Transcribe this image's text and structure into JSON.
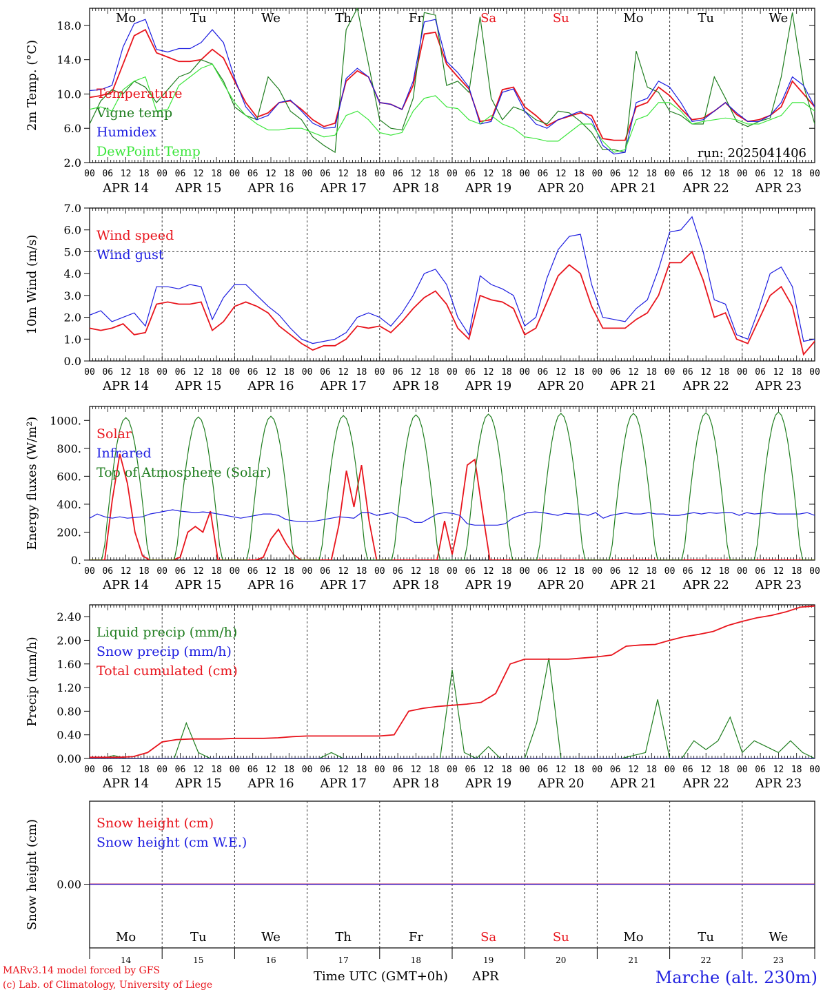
{
  "colors": {
    "red": "#e8141c",
    "green": "#1e7d1e",
    "blue": "#1c1ce0",
    "lime": "#3ce63c",
    "grid": "#333333"
  },
  "day_labels": {
    "top": [
      {
        "t": "Mo",
        "c": "black"
      },
      {
        "t": "Tu",
        "c": "black"
      },
      {
        "t": "We",
        "c": "black"
      },
      {
        "t": "Th",
        "c": "black"
      },
      {
        "t": "Fr",
        "c": "black"
      },
      {
        "t": "Sa",
        "c": "red"
      },
      {
        "t": "Su",
        "c": "red"
      },
      {
        "t": "Mo",
        "c": "black"
      },
      {
        "t": "Tu",
        "c": "black"
      },
      {
        "t": "We",
        "c": "black"
      }
    ],
    "date_rows": [
      "APR 14",
      "APR 15",
      "APR 16",
      "APR 17",
      "APR 18",
      "APR 19",
      "APR 20",
      "APR 21",
      "APR 22",
      "APR 23"
    ],
    "hour_ticks": [
      "00",
      "06",
      "12",
      "18"
    ],
    "hour_end": "00",
    "day_numbers": [
      "14",
      "15",
      "16",
      "17",
      "18",
      "19",
      "20",
      "21",
      "22",
      "23"
    ]
  },
  "footer": {
    "model": "MARv3.14 model forced by GFS",
    "credit": "(c) Lab. of Climatology, University of Liege",
    "xlabel": "Time UTC (GMT+0h)",
    "month": "APR",
    "station": "Marche (alt. 230m)"
  },
  "chart_data": [
    {
      "id": "temp",
      "type": "line",
      "ylabel": "2m Temp. (°C)",
      "ylim": [
        2,
        20
      ],
      "yticks": [
        "2.0",
        "6.0",
        "10.0",
        "14.0",
        "18.0"
      ],
      "ytick_values": [
        2,
        6,
        10,
        14,
        18
      ],
      "run": "run: 2025041406",
      "x_hours_step": 6,
      "series": [
        {
          "name": "Temperature",
          "color": "red",
          "values": [
            9.6,
            9.8,
            10.2,
            13.5,
            16.8,
            17.5,
            14.8,
            14.3,
            13.8,
            13.8,
            14.0,
            15.2,
            14.2,
            11.5,
            9.0,
            7.3,
            7.8,
            9.0,
            9.2,
            8.2,
            7.0,
            6.2,
            6.6,
            11.5,
            12.7,
            12.0,
            9.0,
            8.8,
            8.2,
            11.0,
            17.0,
            17.2,
            13.5,
            12.0,
            10.6,
            6.8,
            7.0,
            10.5,
            10.8,
            8.5,
            7.5,
            6.3,
            7.0,
            7.4,
            7.8,
            7.5,
            4.8,
            4.6,
            4.6,
            8.5,
            9.0,
            10.8,
            9.8,
            8.3,
            7.0,
            7.2,
            8.0,
            9.0,
            7.6,
            6.8,
            7.0,
            7.5,
            8.5,
            11.5,
            10.0,
            8.5
          ]
        },
        {
          "name": "Vigne temp",
          "color": "green",
          "values": [
            6.5,
            9.2,
            10.5,
            10.0,
            11.5,
            10.8,
            9.0,
            10.5,
            12.0,
            12.5,
            14.0,
            13.5,
            11.5,
            8.5,
            7.5,
            7.0,
            12.0,
            10.5,
            8.0,
            7.0,
            5.0,
            4.0,
            3.2,
            17.5,
            20.0,
            13.5,
            7.0,
            6.0,
            5.8,
            9.5,
            19.5,
            19.2,
            11.0,
            11.5,
            10.2,
            19.0,
            9.5,
            7.0,
            8.5,
            8.0,
            7.0,
            6.5,
            8.0,
            7.8,
            6.8,
            5.5,
            3.5,
            3.5,
            3.2,
            15.0,
            10.8,
            10.2,
            8.0,
            7.5,
            6.5,
            6.5,
            12.0,
            9.5,
            6.8,
            6.2,
            6.8,
            7.2,
            12.0,
            19.5,
            11.0,
            6.5
          ]
        },
        {
          "name": "Humidex",
          "color": "blue",
          "values": [
            10.4,
            10.5,
            11.0,
            15.5,
            18.2,
            18.7,
            15.2,
            14.9,
            15.3,
            15.3,
            16.0,
            17.5,
            16.0,
            11.8,
            8.5,
            7.0,
            7.5,
            9.0,
            9.3,
            8.0,
            6.6,
            6.0,
            6.1,
            11.8,
            13.0,
            12.0,
            9.0,
            8.8,
            8.2,
            11.5,
            18.4,
            18.7,
            13.8,
            12.5,
            10.8,
            6.5,
            6.8,
            10.2,
            10.6,
            8.0,
            6.5,
            6.0,
            7.0,
            7.5,
            8.0,
            7.0,
            4.0,
            3.0,
            3.2,
            9.0,
            9.5,
            11.5,
            10.8,
            9.0,
            6.8,
            7.0,
            8.0,
            9.0,
            7.8,
            6.8,
            6.8,
            7.5,
            9.0,
            12.0,
            11.0,
            8.5
          ]
        },
        {
          "name": "DewPoint Temp",
          "color": "lime",
          "values": [
            8.2,
            8.5,
            8.0,
            10.5,
            11.5,
            12.0,
            8.0,
            8.2,
            11.0,
            12.0,
            13.0,
            13.5,
            11.2,
            9.0,
            7.5,
            6.5,
            5.8,
            5.8,
            6.0,
            6.0,
            5.5,
            5.0,
            5.2,
            7.5,
            8.0,
            7.0,
            5.5,
            5.2,
            5.5,
            8.0,
            9.5,
            9.8,
            8.5,
            8.3,
            7.0,
            6.5,
            7.5,
            6.5,
            6.0,
            5.0,
            4.8,
            4.5,
            4.5,
            5.5,
            6.5,
            6.5,
            4.5,
            3.2,
            3.5,
            7.0,
            7.5,
            9.0,
            9.0,
            8.0,
            6.5,
            6.8,
            7.0,
            7.2,
            7.0,
            6.5,
            6.5,
            7.0,
            7.5,
            9.0,
            9.0,
            8.0
          ]
        }
      ],
      "legend": [
        "Temperature",
        "Vigne temp",
        "Humidex",
        "DewPoint Temp"
      ]
    },
    {
      "id": "wind",
      "type": "line",
      "ylabel": "10m Wind (m/s)",
      "ylim": [
        0,
        7
      ],
      "yticks": [
        "0.0",
        "1.0",
        "2.0",
        "3.0",
        "4.0",
        "5.0",
        "6.0",
        "7.0"
      ],
      "ytick_values": [
        0,
        1,
        2,
        3,
        4,
        5,
        6,
        7
      ],
      "ref_line": 5,
      "x_hours_step": 6,
      "series": [
        {
          "name": "Wind speed",
          "color": "red",
          "values": [
            1.5,
            1.4,
            1.5,
            1.7,
            1.2,
            1.3,
            2.6,
            2.7,
            2.6,
            2.6,
            2.7,
            1.4,
            1.8,
            2.5,
            2.7,
            2.5,
            2.2,
            1.6,
            1.2,
            0.8,
            0.5,
            0.7,
            0.7,
            1.0,
            1.6,
            1.5,
            1.6,
            1.3,
            1.8,
            2.4,
            2.9,
            3.2,
            2.6,
            1.5,
            1.0,
            3.0,
            2.8,
            2.7,
            2.4,
            1.2,
            1.5,
            2.7,
            3.9,
            4.4,
            4.0,
            2.5,
            1.5,
            1.5,
            1.5,
            1.9,
            2.2,
            3.0,
            4.5,
            4.5,
            5.0,
            3.7,
            2.0,
            2.2,
            1.0,
            0.8,
            1.9,
            3.0,
            3.4,
            2.5,
            0.3,
            0.9
          ]
        },
        {
          "name": "Wind gust",
          "color": "blue",
          "values": [
            2.1,
            2.3,
            1.8,
            2.0,
            2.2,
            1.6,
            3.4,
            3.4,
            3.3,
            3.5,
            3.4,
            1.9,
            2.9,
            3.5,
            3.5,
            3.0,
            2.5,
            2.1,
            1.5,
            1.0,
            0.8,
            0.9,
            1.0,
            1.3,
            2.0,
            2.2,
            2.0,
            1.6,
            2.2,
            3.0,
            4.0,
            4.2,
            3.5,
            2.0,
            1.2,
            3.9,
            3.5,
            3.3,
            3.0,
            1.6,
            2.0,
            3.8,
            5.1,
            5.7,
            5.8,
            3.5,
            2.0,
            1.9,
            1.8,
            2.4,
            2.8,
            4.2,
            5.9,
            6.0,
            6.6,
            5.0,
            2.8,
            2.6,
            1.2,
            1.0,
            2.4,
            4.0,
            4.3,
            3.4,
            0.9,
            1.0
          ]
        }
      ],
      "legend": [
        "Wind speed",
        "Wind gust"
      ]
    },
    {
      "id": "energy",
      "type": "line",
      "ylabel": "Energy fluxes (W/m²)",
      "ylim": [
        0,
        1100
      ],
      "yticks": [
        "0.",
        "200.",
        "400.",
        "600.",
        "800.",
        "1000."
      ],
      "ytick_values": [
        0,
        200,
        400,
        600,
        800,
        1000
      ],
      "x_hours_step": 6,
      "series": [
        {
          "name": "Solar",
          "color": "red",
          "values": [
            0,
            0,
            0,
            430,
            760,
            550,
            200,
            30,
            0,
            0,
            0,
            0,
            20,
            200,
            240,
            200,
            350,
            0,
            0,
            0,
            0,
            0,
            0,
            20,
            150,
            220,
            120,
            40,
            0,
            0,
            0,
            0,
            0,
            250,
            640,
            380,
            680,
            280,
            0,
            0,
            0,
            0,
            0,
            0,
            0,
            0,
            0,
            280,
            40,
            300,
            680,
            720,
            350,
            0,
            0,
            0,
            0,
            0,
            0,
            0,
            0,
            0,
            0,
            0,
            0,
            0,
            0,
            0,
            0,
            0,
            0,
            0,
            0,
            0,
            0,
            0,
            0,
            0,
            0,
            0,
            0,
            0,
            0,
            0,
            0,
            0,
            0,
            0,
            0,
            0,
            0,
            0,
            0,
            0,
            0,
            0,
            0
          ]
        },
        {
          "name": "Infrared",
          "color": "blue",
          "values": [
            300,
            330,
            310,
            300,
            310,
            300,
            305,
            310,
            330,
            340,
            350,
            360,
            350,
            345,
            340,
            345,
            340,
            330,
            320,
            310,
            300,
            310,
            320,
            330,
            330,
            320,
            290,
            280,
            275,
            275,
            280,
            290,
            300,
            310,
            305,
            300,
            340,
            340,
            320,
            330,
            340,
            310,
            300,
            270,
            270,
            300,
            330,
            340,
            335,
            320,
            260,
            250,
            250,
            250,
            250,
            260,
            300,
            320,
            340,
            345,
            340,
            330,
            320,
            335,
            330,
            330,
            320,
            340,
            300,
            320,
            330,
            340,
            330,
            330,
            340,
            330,
            330,
            320,
            320,
            330,
            340,
            330,
            340,
            335,
            340,
            340,
            320,
            340,
            330,
            335,
            340,
            330,
            330,
            330,
            330,
            340,
            320
          ]
        },
        {
          "name": "Top of Atmosphere (Solar)",
          "color": "green",
          "values": []
        }
      ],
      "legend": [
        "Solar",
        "Infrared",
        "Top of Atmosphere (Solar)"
      ],
      "toa_peaks": [
        1020,
        1025,
        1030,
        1035,
        1040,
        1045,
        1050,
        1050,
        1055,
        1060
      ]
    },
    {
      "id": "precip",
      "type": "line",
      "ylabel": "Precip (mm/h)",
      "ylim": [
        0,
        2.6
      ],
      "yticks": [
        "0.00",
        "0.40",
        "0.80",
        "1.20",
        "1.60",
        "2.00",
        "2.40"
      ],
      "ytick_values": [
        0,
        0.4,
        0.8,
        1.2,
        1.6,
        2.0,
        2.4
      ],
      "x_hours_step": 6,
      "series": [
        {
          "name": "Liquid precip (mm/h)",
          "color": "green",
          "values": [
            0,
            0,
            0.05,
            0,
            0,
            0,
            0,
            0,
            0.6,
            0.1,
            0,
            0,
            0,
            0,
            0,
            0,
            0,
            0,
            0,
            0,
            0.1,
            0,
            0,
            0,
            0,
            0,
            0,
            0,
            0,
            0,
            1.5,
            0.1,
            0,
            0.2,
            0,
            0,
            0,
            0.6,
            1.7,
            0,
            0,
            0,
            0,
            0,
            0,
            0.05,
            0.1,
            1.0,
            0,
            0,
            0.3,
            0.15,
            0.3,
            0.7,
            0.1,
            0.3,
            0.2,
            0.1,
            0.3,
            0.1,
            0
          ]
        },
        {
          "name": "Snow precip (mm/h)",
          "color": "blue",
          "values": [
            0,
            0
          ]
        },
        {
          "name": "Total cumulated (cm)",
          "color": "red",
          "values": [
            0.02,
            0.02,
            0.02,
            0.03,
            0.1,
            0.28,
            0.32,
            0.33,
            0.33,
            0.33,
            0.34,
            0.34,
            0.34,
            0.35,
            0.37,
            0.38,
            0.38,
            0.38,
            0.38,
            0.38,
            0.38,
            0.4,
            0.8,
            0.85,
            0.88,
            0.9,
            0.92,
            0.95,
            1.1,
            1.6,
            1.68,
            1.68,
            1.68,
            1.68,
            1.7,
            1.72,
            1.75,
            1.9,
            1.92,
            1.93,
            2.0,
            2.06,
            2.1,
            2.15,
            2.25,
            2.32,
            2.38,
            2.42,
            2.48,
            2.56,
            2.58
          ]
        }
      ],
      "legend": [
        "Liquid precip (mm/h)",
        "Snow precip (mm/h)",
        "Total cumulated (cm)"
      ]
    },
    {
      "id": "snow",
      "type": "line",
      "ylabel": "Snow height (cm)",
      "yticks": [
        "0.00"
      ],
      "series": [
        {
          "name": "Snow height (cm)",
          "color": "red",
          "values": [
            0,
            0
          ]
        },
        {
          "name": "Snow height (cm W.E.)",
          "color": "blue",
          "values": [
            0,
            0
          ]
        }
      ],
      "legend": [
        "Snow height (cm)",
        "Snow height (cm W.E.)"
      ]
    }
  ]
}
